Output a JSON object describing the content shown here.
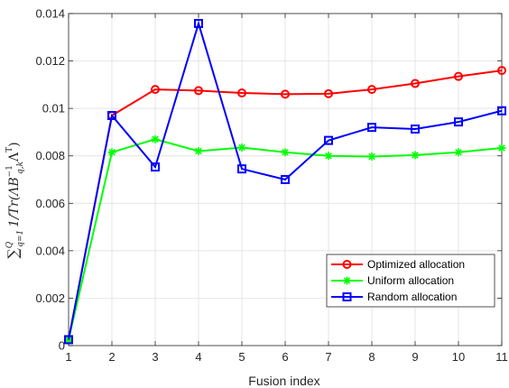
{
  "chart_data": {
    "type": "line",
    "xlabel": "Fusion index",
    "ylabel_parts": {
      "sum": "∑",
      "upper": "Q",
      "lower": "q=1",
      "main": "1/Tr(ΛB",
      "sup": "−1",
      "sub": "q,k",
      "tail": "Λ",
      "tailsup": "T",
      "close": ")"
    },
    "x": [
      1,
      2,
      3,
      4,
      5,
      6,
      7,
      8,
      9,
      10,
      11
    ],
    "xlim": [
      1,
      11
    ],
    "ylim": [
      0,
      0.014
    ],
    "xticks": [
      "1",
      "2",
      "3",
      "4",
      "5",
      "6",
      "7",
      "8",
      "9",
      "10",
      "11"
    ],
    "yticks": [
      "0",
      "0.002",
      "0.004",
      "0.006",
      "0.008",
      "0.01",
      "0.012",
      "0.014"
    ],
    "grid": true,
    "legend_position": "lower-right",
    "series": [
      {
        "name": "Optimized allocation",
        "color": "#ff0000",
        "marker": "circle",
        "values": [
          0.00025,
          0.0097,
          0.0108,
          0.01075,
          0.01065,
          0.0106,
          0.01062,
          0.0108,
          0.01105,
          0.01135,
          0.0116
        ]
      },
      {
        "name": "Uniform allocation",
        "color": "#00ff00",
        "marker": "asterisk",
        "values": [
          0.00025,
          0.00815,
          0.0087,
          0.0082,
          0.00835,
          0.00815,
          0.008,
          0.00797,
          0.00803,
          0.00815,
          0.00833
        ]
      },
      {
        "name": "Random allocation",
        "color": "#0000ff",
        "marker": "square",
        "values": [
          0.00025,
          0.0097,
          0.00753,
          0.01358,
          0.00745,
          0.007,
          0.00865,
          0.0092,
          0.00913,
          0.00943,
          0.0099
        ]
      }
    ]
  }
}
